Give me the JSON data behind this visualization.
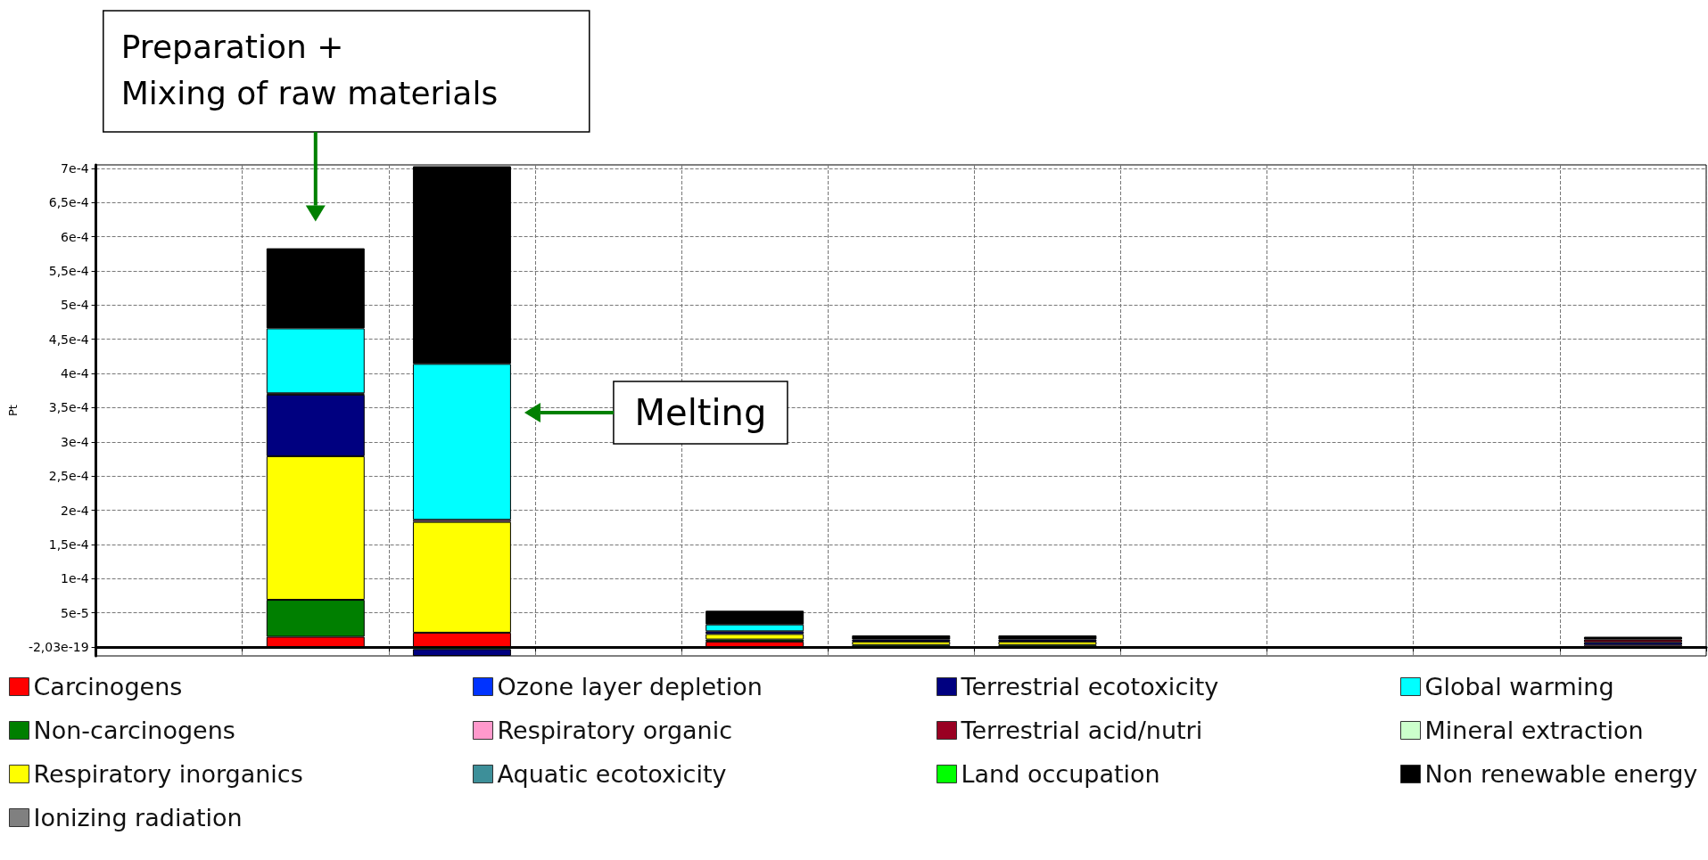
{
  "chart_data": {
    "type": "bar",
    "stacked": true,
    "ylabel": "Pt",
    "categories": [
      null,
      null,
      null,
      null,
      null,
      null,
      null,
      null,
      null,
      null,
      null
    ],
    "series": [
      {
        "name": "Carcinogens",
        "color": "#ff0000",
        "values": [
          null,
          1.5e-05,
          2.1e-05,
          null,
          8e-06,
          null,
          null,
          null,
          null,
          null,
          null
        ]
      },
      {
        "name": "Non-carcinogens",
        "color": "#007f00",
        "values": [
          null,
          5.4e-05,
          -3e-06,
          null,
          3e-06,
          3e-06,
          3e-06,
          null,
          null,
          null,
          null
        ]
      },
      {
        "name": "Respiratory inorganics",
        "color": "#ffff00",
        "values": [
          null,
          0.00021,
          0.000162,
          null,
          8e-06,
          5e-06,
          5e-06,
          null,
          null,
          null,
          null
        ]
      },
      {
        "name": "Ionizing radiation",
        "color": "#808080",
        "values": [
          null,
          null,
          null,
          null,
          null,
          null,
          null,
          null,
          null,
          null,
          null
        ]
      },
      {
        "name": "Ozone layer depletion",
        "color": "#0033ff",
        "values": [
          null,
          null,
          null,
          null,
          null,
          null,
          null,
          null,
          null,
          null,
          null
        ]
      },
      {
        "name": "Respiratory organic",
        "color": "#ff99cc",
        "values": [
          null,
          null,
          3e-06,
          null,
          null,
          null,
          null,
          null,
          null,
          null,
          3e-06
        ]
      },
      {
        "name": "Aquatic ecotoxicity",
        "color": "#3d8f99",
        "values": [
          null,
          null,
          null,
          null,
          null,
          null,
          null,
          null,
          null,
          null,
          null
        ]
      },
      {
        "name": "Terrestrial ecotoxicity",
        "color": "#000080",
        "values": [
          null,
          9e-05,
          -1e-05,
          null,
          4e-06,
          3e-06,
          3e-06,
          null,
          null,
          null,
          4e-06
        ]
      },
      {
        "name": "Terrestrial acid/nutri",
        "color": "#990022",
        "values": [
          null,
          2e-06,
          null,
          null,
          null,
          null,
          null,
          null,
          null,
          null,
          4e-06
        ]
      },
      {
        "name": "Land occupation",
        "color": "#00ff00",
        "values": [
          null,
          null,
          null,
          null,
          null,
          null,
          null,
          null,
          null,
          null,
          null
        ]
      },
      {
        "name": "Global warming",
        "color": "#00ffff",
        "values": [
          null,
          9.5e-05,
          0.000228,
          null,
          1e-05,
          null,
          null,
          null,
          null,
          null,
          null
        ]
      },
      {
        "name": "Mineral extraction",
        "color": "#ccffcc",
        "values": [
          null,
          null,
          null,
          null,
          null,
          null,
          null,
          null,
          null,
          null,
          null
        ]
      },
      {
        "name": "Non renewable energy",
        "color": "#000000",
        "values": [
          null,
          0.000117,
          0.000289,
          null,
          2e-05,
          6e-06,
          6e-06,
          null,
          null,
          null,
          4e-06
        ]
      }
    ],
    "ylim": [
      -1.3e-05,
      0.000705
    ],
    "yticks": [
      {
        "value": -2.03e-19,
        "label": "-2,03e-19"
      },
      {
        "value": 5e-05,
        "label": "5e-5"
      },
      {
        "value": 0.0001,
        "label": "1e-4"
      },
      {
        "value": 0.00015,
        "label": "1,5e-4"
      },
      {
        "value": 0.0002,
        "label": "2e-4"
      },
      {
        "value": 0.00025,
        "label": "2,5e-4"
      },
      {
        "value": 0.0003,
        "label": "3e-4"
      },
      {
        "value": 0.00035,
        "label": "3,5e-4"
      },
      {
        "value": 0.0004,
        "label": "4e-4"
      },
      {
        "value": 0.00045,
        "label": "4,5e-4"
      },
      {
        "value": 0.0005,
        "label": "5e-4"
      },
      {
        "value": 0.00055,
        "label": "5,5e-4"
      },
      {
        "value": 0.0006,
        "label": "6e-4"
      },
      {
        "value": 0.00065,
        "label": "6,5e-4"
      },
      {
        "value": 0.0007,
        "label": "7e-4"
      }
    ],
    "grid": true,
    "legend": "bottom",
    "annotations": [
      "Preparation +\nMixing of raw materials",
      "Melting"
    ]
  }
}
